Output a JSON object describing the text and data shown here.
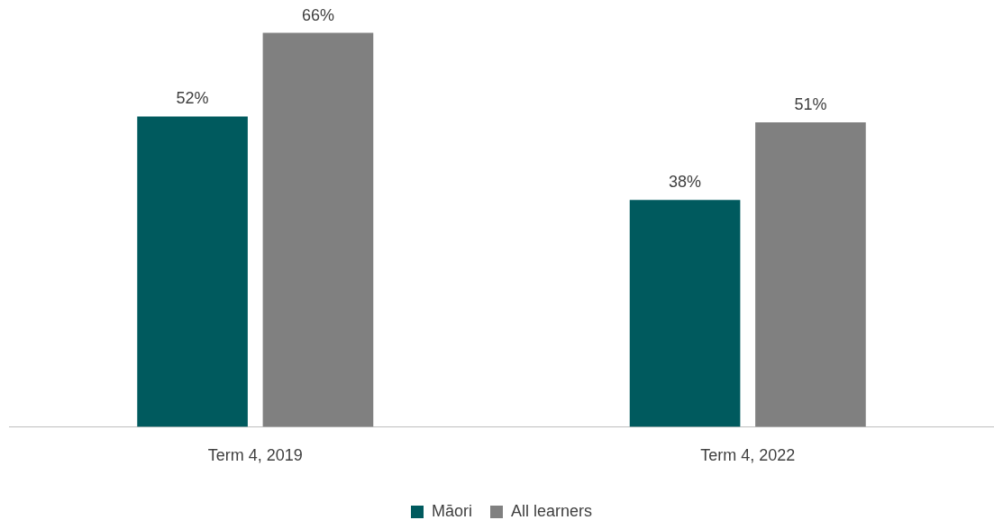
{
  "chart_data": {
    "type": "bar",
    "categories": [
      "Term 4, 2019",
      "Term 4, 2022"
    ],
    "legend": "bottom",
    "grid": false,
    "series": [
      {
        "name": "Māori",
        "color": "#005a5e",
        "values": [
          52,
          38
        ],
        "value_labels": [
          "52%",
          "38%"
        ]
      },
      {
        "name": "All learners",
        "color": "#808080",
        "values": [
          66,
          51
        ],
        "value_labels": [
          "66%",
          "51%"
        ]
      }
    ]
  }
}
